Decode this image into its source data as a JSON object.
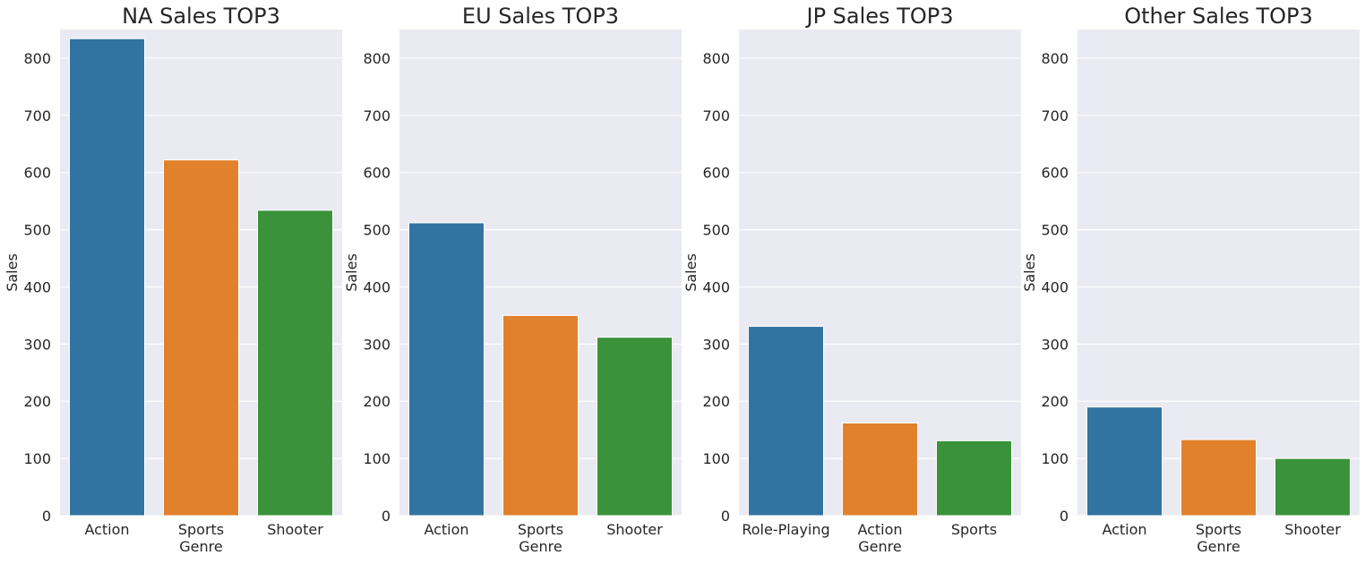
{
  "chart_data": [
    {
      "type": "bar",
      "title": "NA Sales TOP3",
      "xlabel": "Genre",
      "ylabel": "Sales",
      "categories": [
        "Action",
        "Sports",
        "Shooter"
      ],
      "values": [
        834,
        622,
        534
      ],
      "ylim": [
        0,
        850
      ],
      "yticks": [
        "0",
        "100",
        "200",
        "300",
        "400",
        "500",
        "600",
        "700",
        "800"
      ],
      "colors": [
        "#3274a1",
        "#e1812c",
        "#3a923a"
      ],
      "grid": true
    },
    {
      "type": "bar",
      "title": "EU Sales TOP3",
      "xlabel": "Genre",
      "ylabel": "Sales",
      "categories": [
        "Action",
        "Sports",
        "Shooter"
      ],
      "values": [
        512,
        350,
        312
      ],
      "ylim": [
        0,
        850
      ],
      "yticks": [
        "0",
        "100",
        "200",
        "300",
        "400",
        "500",
        "600",
        "700",
        "800"
      ],
      "colors": [
        "#3274a1",
        "#e1812c",
        "#3a923a"
      ],
      "grid": true
    },
    {
      "type": "bar",
      "title": "JP Sales TOP3",
      "xlabel": "Genre",
      "ylabel": "Sales",
      "categories": [
        "Role-Playing",
        "Action",
        "Sports"
      ],
      "values": [
        331,
        162,
        131
      ],
      "ylim": [
        0,
        850
      ],
      "yticks": [
        "0",
        "100",
        "200",
        "300",
        "400",
        "500",
        "600",
        "700",
        "800"
      ],
      "colors": [
        "#3274a1",
        "#e1812c",
        "#3a923a"
      ],
      "grid": true
    },
    {
      "type": "bar",
      "title": "Other Sales TOP3",
      "xlabel": "Genre",
      "ylabel": "Sales",
      "categories": [
        "Action",
        "Sports",
        "Shooter"
      ],
      "values": [
        190,
        133,
        100
      ],
      "ylim": [
        0,
        850
      ],
      "yticks": [
        "0",
        "100",
        "200",
        "300",
        "400",
        "500",
        "600",
        "700",
        "800"
      ],
      "colors": [
        "#3274a1",
        "#e1812c",
        "#3a923a"
      ],
      "grid": true
    }
  ]
}
